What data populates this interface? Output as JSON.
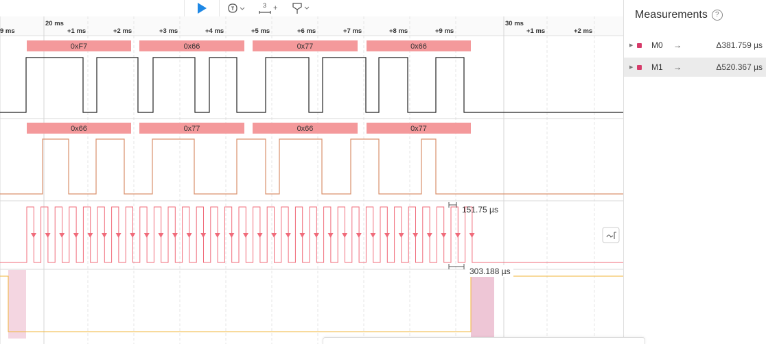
{
  "toolbar": {
    "play_icon": "play-icon",
    "trigger_icon": "trigger-icon",
    "count_value": "3",
    "count_plus": "+",
    "marker_icon": "marker-icon"
  },
  "timeline": {
    "ticks": [
      "9 ms",
      "20 ms",
      "+1 ms",
      "+2 ms",
      "+3 ms",
      "+4 ms",
      "+5 ms",
      "+6 ms",
      "+7 ms",
      "+8 ms",
      "+9 ms",
      "30 ms",
      "+1 ms",
      "+2 ms"
    ]
  },
  "channels": {
    "ch0_bytes": [
      "0xF7",
      "0x66",
      "0x77",
      "0x66"
    ],
    "ch1_bytes": [
      "0x66",
      "0x77",
      "0x66",
      "0x77"
    ],
    "bus_color": "#f4999b",
    "ch0_color": "#222222",
    "ch1_color": "#d9906c",
    "clock_color": "#f06b7a",
    "ch3_color": "#f0b63a",
    "highlight_color": "#f2c9d7"
  },
  "annotations": {
    "clock_period": "151.75 µs",
    "span": "303.188 µs"
  },
  "measurements": {
    "title": "Measurements",
    "help_icon": "?",
    "items": [
      {
        "name": "M0",
        "arrow": "→",
        "value": "Δ381.759 µs",
        "color": "#d63b6a"
      },
      {
        "name": "M1",
        "arrow": "→",
        "value": "Δ520.367 µs",
        "color": "#d63b6a"
      }
    ]
  }
}
